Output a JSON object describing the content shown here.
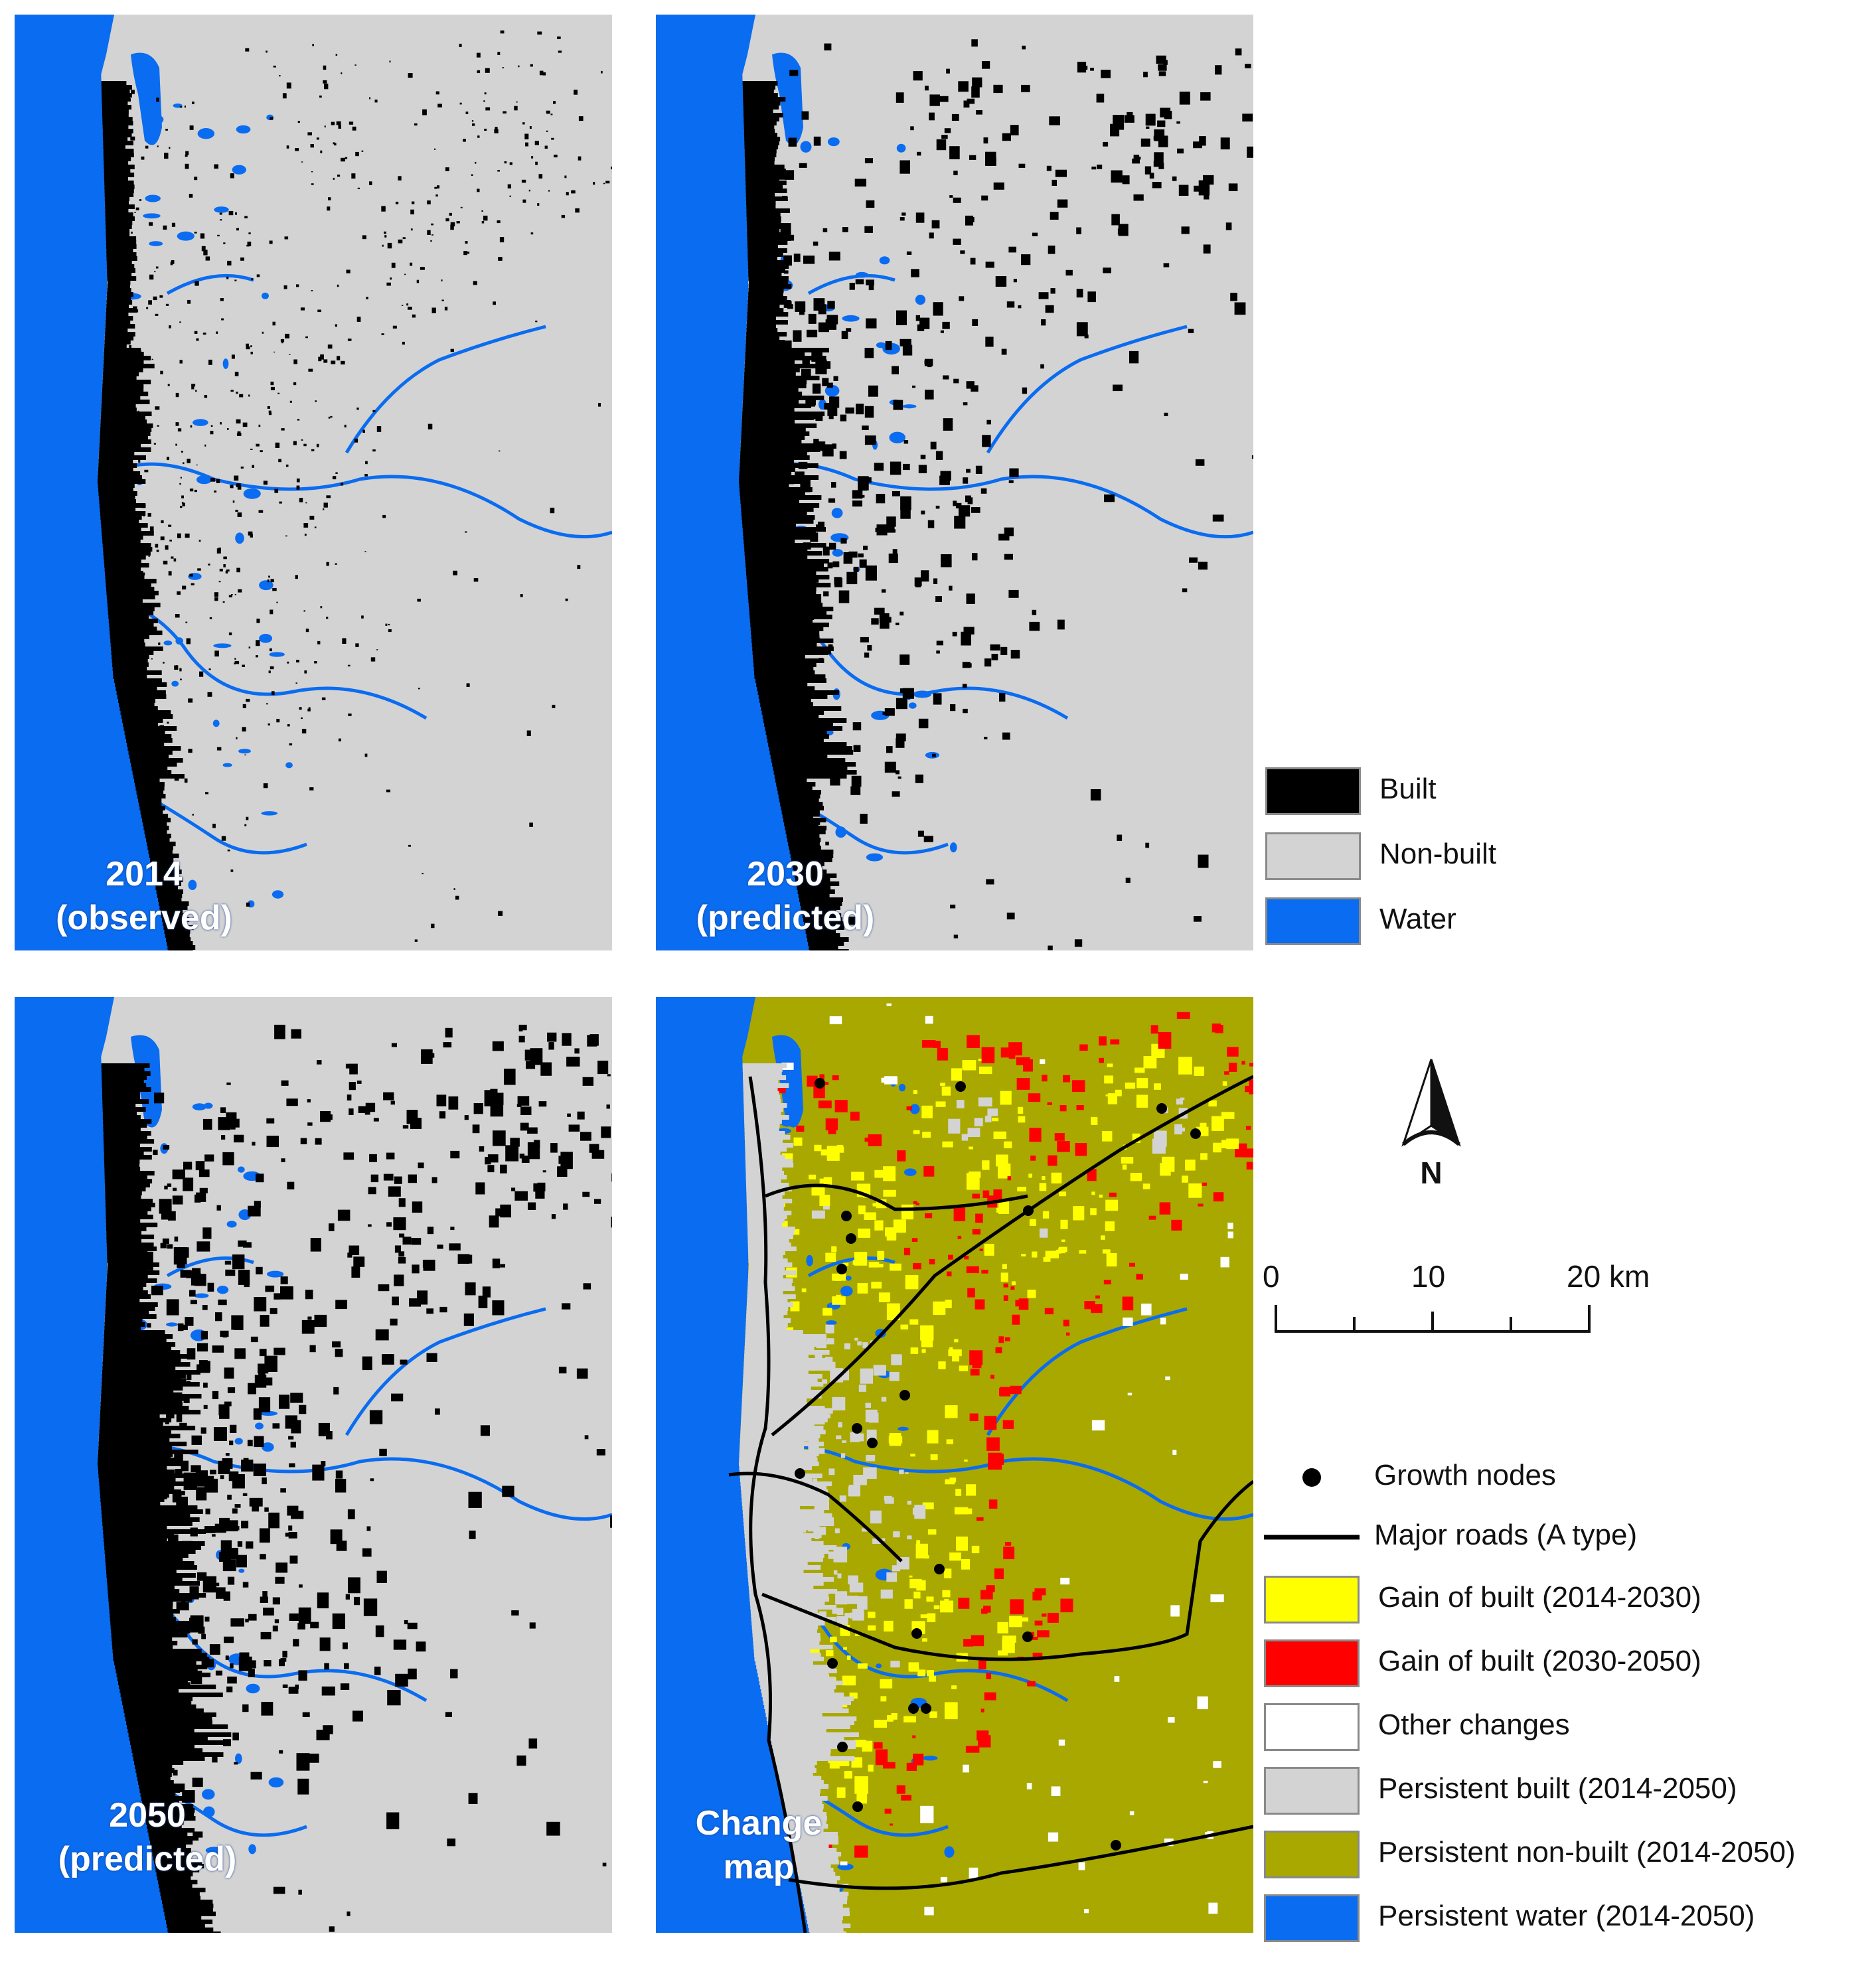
{
  "colors": {
    "built": "#000000",
    "non_built": "#d3d3d3",
    "water": "#0a6cf0",
    "gain_2014_2030": "#ffff00",
    "gain_2030_2050": "#ff0000",
    "other_changes": "#ffffff",
    "persistent_built": "#d3d3d3",
    "persistent_non_built": "#a8a800",
    "persistent_water": "#0a6cf0",
    "road": "#000000"
  },
  "panels": {
    "p2014": {
      "line1": "2014",
      "line2": "(observed)",
      "built_density": 0.35
    },
    "p2030": {
      "line1": "2030",
      "line2": "(predicted)",
      "built_density": 0.62
    },
    "p2050": {
      "line1": "2050",
      "line2": "(predicted)",
      "built_density": 0.78
    },
    "change": {
      "line1": "Change",
      "line2": "map"
    }
  },
  "legend_landcover": [
    {
      "label": "Built",
      "color": "#000000"
    },
    {
      "label": "Non-built",
      "color": "#d3d3d3"
    },
    {
      "label": "Water",
      "color": "#0a6cf0"
    }
  ],
  "north_arrow": {
    "letter": "N"
  },
  "scale_bar": {
    "ticks": [
      "0",
      "10",
      "20 km"
    ]
  },
  "legend_change": {
    "growth_nodes": "Growth nodes",
    "major_roads": "Major roads (A type)",
    "classes": [
      {
        "label": "Gain of built (2014-2030)",
        "color": "#ffff00"
      },
      {
        "label": "Gain of built (2030-2050)",
        "color": "#ff0000"
      },
      {
        "label": "Other changes",
        "color": "#ffffff"
      },
      {
        "label": "Persistent built (2014-2050)",
        "color": "#d3d3d3"
      },
      {
        "label": "Persistent non-built (2014-2050)",
        "color": "#a8a800"
      },
      {
        "label": "Persistent water (2014-2050)",
        "color": "#0a6cf0"
      }
    ]
  }
}
